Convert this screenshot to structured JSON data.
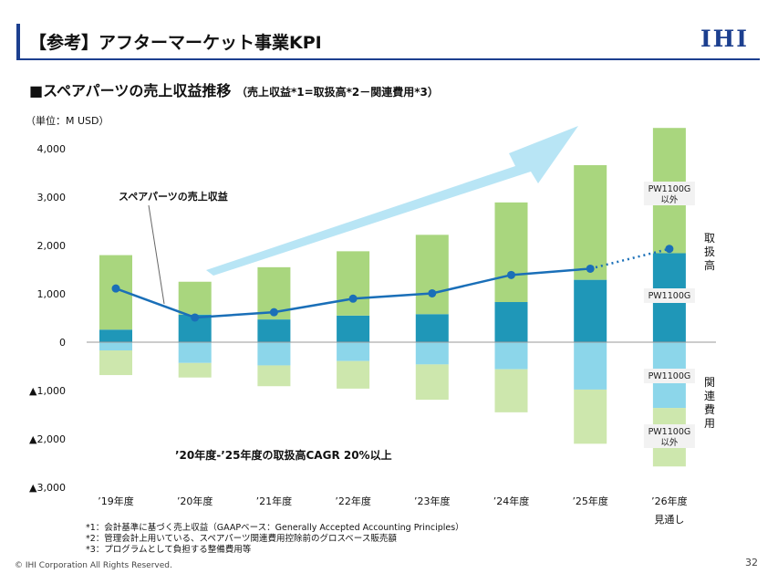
{
  "header": {
    "title": "【参考】アフターマーケット事業KPI",
    "logo": "IHI"
  },
  "subtitle": {
    "main": "■スペアパーツの売上収益推移",
    "note": "（売上収益*1=取扱高*2－関連費用*3）"
  },
  "chart_data": {
    "type": "bar",
    "title": "",
    "unit_label": "（単位：M USD）",
    "categories": [
      "’19年度",
      "’20年度",
      "’21年度",
      "’22年度",
      "’23年度",
      "’24年度",
      "’25年度",
      "’26年度"
    ],
    "forecast_label": "見通し",
    "ylim": [
      -3000,
      4000
    ],
    "y_ticks": [
      {
        "value": 4000,
        "label": "4,000"
      },
      {
        "value": 3000,
        "label": "3,000"
      },
      {
        "value": 2000,
        "label": "2,000"
      },
      {
        "value": 1000,
        "label": "1,000"
      },
      {
        "value": 0,
        "label": "0"
      },
      {
        "value": -1000,
        "label": "▲1,000"
      },
      {
        "value": -2000,
        "label": "▲2,000"
      },
      {
        "value": -3000,
        "label": "▲3,000"
      }
    ],
    "stacks": {
      "handling_pw1100g": [
        260,
        570,
        470,
        550,
        580,
        830,
        1290,
        1840
      ],
      "handling_other": [
        1540,
        680,
        1080,
        1330,
        1640,
        2060,
        2370,
        2590
      ],
      "cost_pw1100g": [
        -170,
        -430,
        -480,
        -390,
        -460,
        -560,
        -980,
        -1360
      ],
      "cost_other": [
        -510,
        -300,
        -430,
        -570,
        -730,
        -890,
        -1120,
        -1210
      ]
    },
    "series": [
      {
        "name": "スペアパーツの売上収益",
        "values": [
          1110,
          510,
          620,
          900,
          1010,
          1390,
          1520,
          1930
        ]
      }
    ],
    "side_labels": {
      "handling": "取扱高",
      "costs": "関連費用"
    },
    "callouts": {
      "pw1100g_other_top": [
        "PW1100G",
        "以外"
      ],
      "pw1100g_top": [
        "PW1100G"
      ],
      "pw1100g_cost": [
        "PW1100G"
      ],
      "pw1100g_other_cost": [
        "PW1100G",
        "以外"
      ]
    },
    "annotation": "’20年度-’25年度の取扱高CAGR 20%以上",
    "colors": {
      "handling_pw1100g": "#1f97b8",
      "handling_other": "#a9d67e",
      "cost_pw1100g": "#8cd6ea",
      "cost_other": "#cde7ad",
      "line": "#1a6fb8",
      "arrow": "#7ed0ec"
    }
  },
  "footnotes": [
    "*1：会計基準に基づく売上収益（GAAPベース：Generally Accepted Accounting Principles）",
    "*2：管理会計上用いている、スペアパーツ関連費用控除前のグロスベース販売額",
    "*3：プログラムとして負担する整備費用等"
  ],
  "footer": {
    "copyright": "© IHI Corporation All Rights Reserved.",
    "page": "32"
  }
}
